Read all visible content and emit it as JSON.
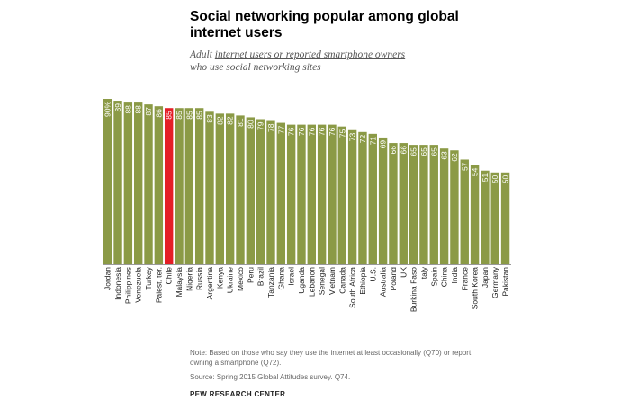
{
  "header": {
    "title": "Social networking popular among global internet users",
    "subtitle_prefix": "Adult ",
    "subtitle_link": "internet users or reported smartphone owners",
    "subtitle_suffix": "who use social networking sites"
  },
  "chart_data": {
    "type": "bar",
    "orientation": "vertical",
    "title": "",
    "xlabel": "",
    "ylabel": "",
    "ylim": [
      0,
      90
    ],
    "grid": false,
    "legend": "none",
    "first_label_suffix": "%",
    "categories": [
      "Jordan",
      "Indonesia",
      "Philippines",
      "Venezuela",
      "Turkey",
      "Palest. ter.",
      "Chile",
      "Malaysia",
      "Nigeria",
      "Russia",
      "Argentina",
      "Kenya",
      "Ukraine",
      "Mexico",
      "Peru",
      "Brazil",
      "Tanzania",
      "Ghana",
      "Israel",
      "Uganda",
      "Lebanon",
      "Senegal",
      "Vietnam",
      "Canada",
      "South Africa",
      "Ethiopia",
      "U.S.",
      "Australia",
      "Poland",
      "UK",
      "Burkina Faso",
      "Italy",
      "Spain",
      "China",
      "India",
      "France",
      "South Korea",
      "Japan",
      "Germany",
      "Pakistan"
    ],
    "values": [
      90,
      89,
      88,
      88,
      87,
      86,
      85,
      85,
      85,
      85,
      83,
      82,
      82,
      81,
      80,
      79,
      78,
      77,
      76,
      76,
      76,
      76,
      76,
      75,
      73,
      72,
      71,
      69,
      66,
      66,
      65,
      65,
      65,
      63,
      62,
      57,
      54,
      51,
      50,
      50
    ],
    "highlight": "Chile",
    "colors": {
      "bar": "#8b9a46",
      "highlight": "#e41e26",
      "label": "#ffffff"
    }
  },
  "notes": {
    "note": "Note: Based on those who say they use the internet at least occasionally (Q70) or report owning a smartphone (Q72).",
    "source": "Source: Spring 2015 Global Attitudes survey. Q74.",
    "brand": "PEW RESEARCH CENTER"
  }
}
